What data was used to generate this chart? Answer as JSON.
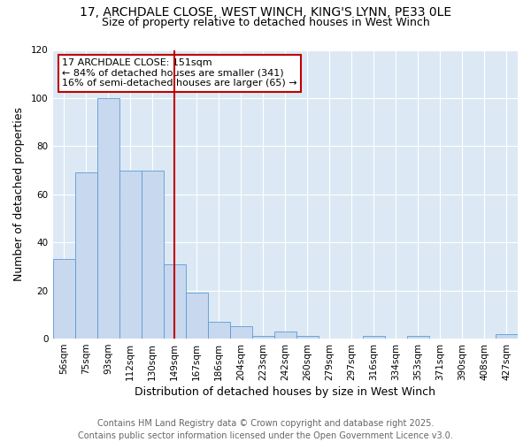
{
  "title_line1": "17, ARCHDALE CLOSE, WEST WINCH, KING'S LYNN, PE33 0LE",
  "title_line2": "Size of property relative to detached houses in West Winch",
  "xlabel": "Distribution of detached houses by size in West Winch",
  "ylabel": "Number of detached properties",
  "categories": [
    "56sqm",
    "75sqm",
    "93sqm",
    "112sqm",
    "130sqm",
    "149sqm",
    "167sqm",
    "186sqm",
    "204sqm",
    "223sqm",
    "242sqm",
    "260sqm",
    "279sqm",
    "297sqm",
    "316sqm",
    "334sqm",
    "353sqm",
    "371sqm",
    "390sqm",
    "408sqm",
    "427sqm"
  ],
  "values": [
    33,
    69,
    100,
    70,
    70,
    31,
    19,
    7,
    5,
    1,
    3,
    1,
    0,
    0,
    1,
    0,
    1,
    0,
    0,
    0,
    2
  ],
  "bar_color": "#c8d8ee",
  "bar_edge_color": "#5b9bd5",
  "vline_x_index": 5,
  "vline_color": "#c00000",
  "annotation_line1": "17 ARCHDALE CLOSE: 151sqm",
  "annotation_line2": "← 84% of detached houses are smaller (341)",
  "annotation_line3": "16% of semi-detached houses are larger (65) →",
  "annotation_box_facecolor": "#ffffff",
  "annotation_box_edgecolor": "#c00000",
  "ylim": [
    0,
    120
  ],
  "yticks": [
    0,
    20,
    40,
    60,
    80,
    100,
    120
  ],
  "fig_bg_color": "#ffffff",
  "plot_bg_color": "#dce9f5",
  "grid_color": "#ffffff",
  "title_fontsize": 10,
  "subtitle_fontsize": 9,
  "axis_label_fontsize": 9,
  "tick_fontsize": 7.5,
  "annotation_fontsize": 8,
  "footer_fontsize": 7,
  "footer_line1": "Contains HM Land Registry data © Crown copyright and database right 2025.",
  "footer_line2": "Contains public sector information licensed under the Open Government Licence v3.0."
}
